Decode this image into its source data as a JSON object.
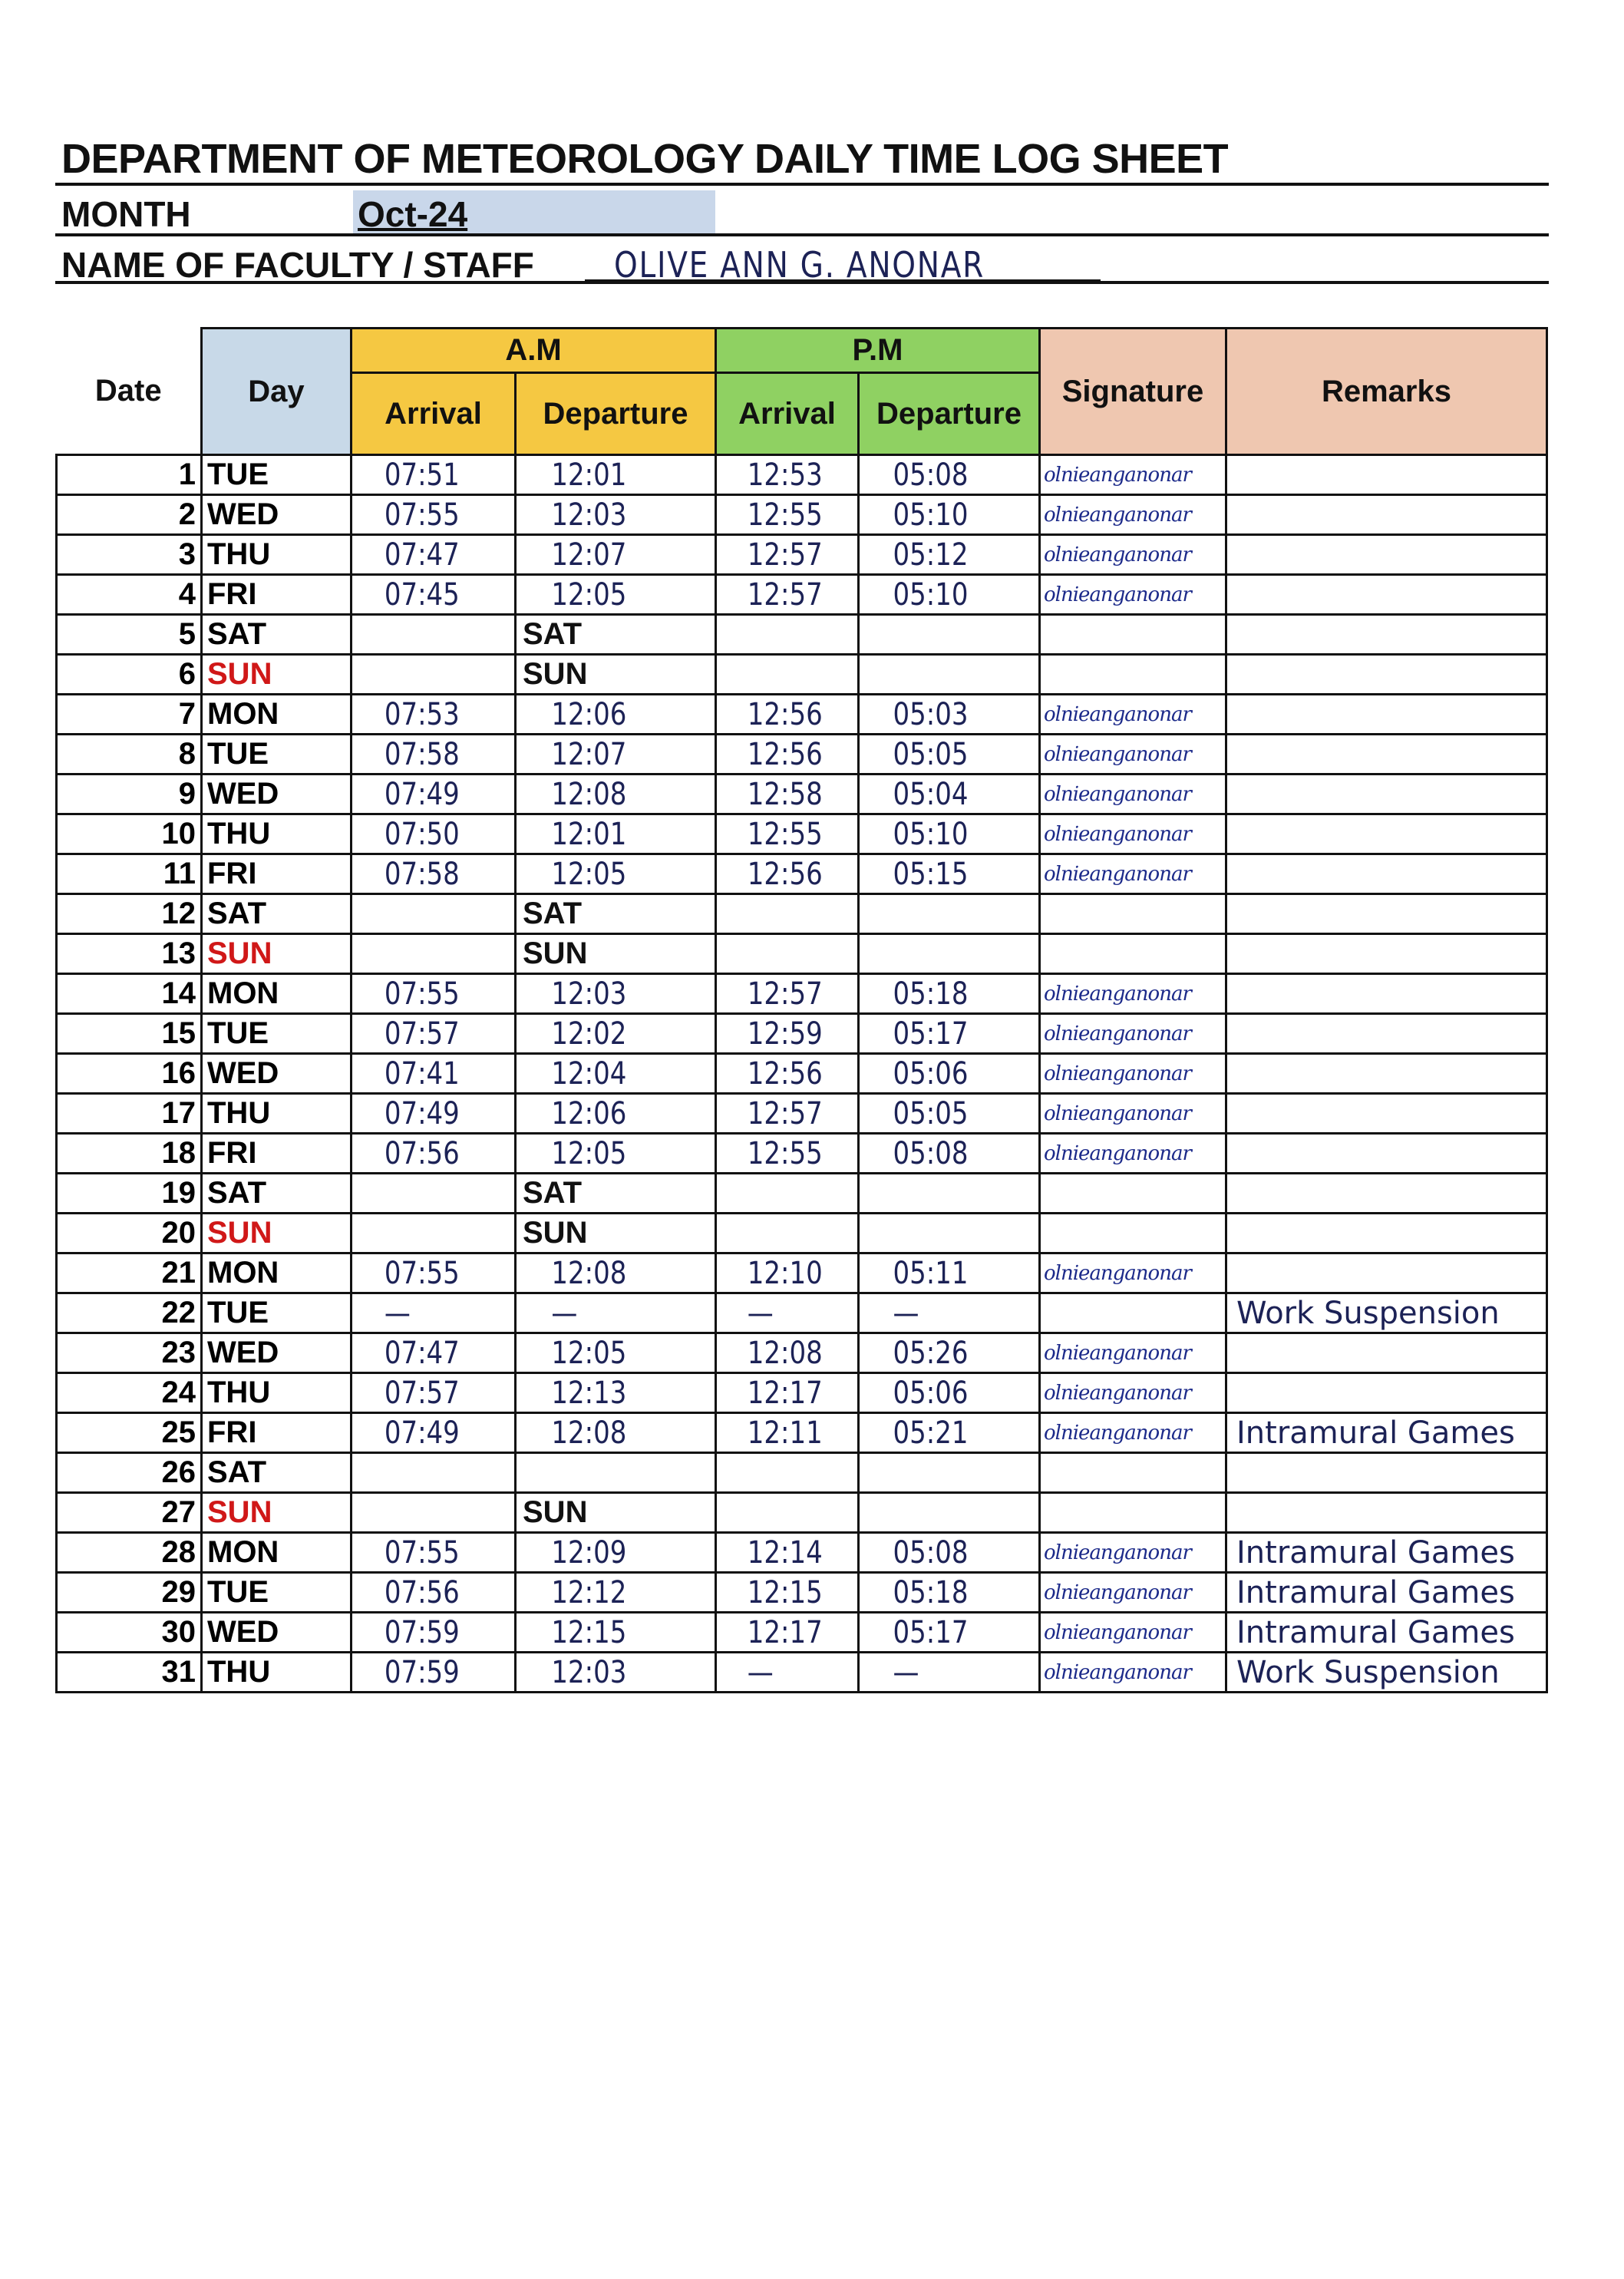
{
  "sheet": {
    "title": "DEPARTMENT OF METEOROLOGY DAILY TIME LOG SHEET",
    "month_label": "MONTH",
    "month_value": "Oct-24",
    "name_label": "NAME OF FACULTY / STAFF",
    "name_value": "OLIVE ANN G. ANONAR"
  },
  "colors": {
    "day_header": "#c8d9e8",
    "am_header": "#f5c842",
    "pm_header": "#8fd162",
    "sig_header": "#efc7b0",
    "sunday": "#d01818",
    "ink": "#1c2256"
  },
  "headers": {
    "date": "Date",
    "day": "Day",
    "am": "A.M",
    "pm": "P.M",
    "am_arrival": "Arrival",
    "am_departure": "Departure",
    "pm_arrival": "Arrival",
    "pm_departure": "Departure",
    "signature": "Signature",
    "remarks": "Remarks"
  },
  "signature_text": "olnieanganonar",
  "rows": [
    {
      "date": "1",
      "day": "TUE",
      "am_arr": "07:51",
      "am_dep": "12:01",
      "pm_arr": "12:53",
      "pm_dep": "05:08",
      "signed": true,
      "remarks": ""
    },
    {
      "date": "2",
      "day": "WED",
      "am_arr": "07:55",
      "am_dep": "12:03",
      "pm_arr": "12:55",
      "pm_dep": "05:10",
      "signed": true,
      "remarks": ""
    },
    {
      "date": "3",
      "day": "THU",
      "am_arr": "07:47",
      "am_dep": "12:07",
      "pm_arr": "12:57",
      "pm_dep": "05:12",
      "signed": true,
      "remarks": ""
    },
    {
      "date": "4",
      "day": "FRI",
      "am_arr": "07:45",
      "am_dep": "12:05",
      "pm_arr": "12:57",
      "pm_dep": "05:10",
      "signed": true,
      "remarks": ""
    },
    {
      "date": "5",
      "day": "SAT",
      "am_arr": "",
      "am_dep": "SAT",
      "pm_arr": "",
      "pm_dep": "",
      "signed": false,
      "remarks": ""
    },
    {
      "date": "6",
      "day": "SUN",
      "am_arr": "",
      "am_dep": "SUN",
      "pm_arr": "",
      "pm_dep": "",
      "signed": false,
      "remarks": ""
    },
    {
      "date": "7",
      "day": "MON",
      "am_arr": "07:53",
      "am_dep": "12:06",
      "pm_arr": "12:56",
      "pm_dep": "05:03",
      "signed": true,
      "remarks": ""
    },
    {
      "date": "8",
      "day": "TUE",
      "am_arr": "07:58",
      "am_dep": "12:07",
      "pm_arr": "12:56",
      "pm_dep": "05:05",
      "signed": true,
      "remarks": ""
    },
    {
      "date": "9",
      "day": "WED",
      "am_arr": "07:49",
      "am_dep": "12:08",
      "pm_arr": "12:58",
      "pm_dep": "05:04",
      "signed": true,
      "remarks": ""
    },
    {
      "date": "10",
      "day": "THU",
      "am_arr": "07:50",
      "am_dep": "12:01",
      "pm_arr": "12:55",
      "pm_dep": "05:10",
      "signed": true,
      "remarks": ""
    },
    {
      "date": "11",
      "day": "FRI",
      "am_arr": "07:58",
      "am_dep": "12:05",
      "pm_arr": "12:56",
      "pm_dep": "05:15",
      "signed": true,
      "remarks": ""
    },
    {
      "date": "12",
      "day": "SAT",
      "am_arr": "",
      "am_dep": "SAT",
      "pm_arr": "",
      "pm_dep": "",
      "signed": false,
      "remarks": ""
    },
    {
      "date": "13",
      "day": "SUN",
      "am_arr": "",
      "am_dep": "SUN",
      "pm_arr": "",
      "pm_dep": "",
      "signed": false,
      "remarks": ""
    },
    {
      "date": "14",
      "day": "MON",
      "am_arr": "07:55",
      "am_dep": "12:03",
      "pm_arr": "12:57",
      "pm_dep": "05:18",
      "signed": true,
      "remarks": ""
    },
    {
      "date": "15",
      "day": "TUE",
      "am_arr": "07:57",
      "am_dep": "12:02",
      "pm_arr": "12:59",
      "pm_dep": "05:17",
      "signed": true,
      "remarks": ""
    },
    {
      "date": "16",
      "day": "WED",
      "am_arr": "07:41",
      "am_dep": "12:04",
      "pm_arr": "12:56",
      "pm_dep": "05:06",
      "signed": true,
      "remarks": ""
    },
    {
      "date": "17",
      "day": "THU",
      "am_arr": "07:49",
      "am_dep": "12:06",
      "pm_arr": "12:57",
      "pm_dep": "05:05",
      "signed": true,
      "remarks": ""
    },
    {
      "date": "18",
      "day": "FRI",
      "am_arr": "07:56",
      "am_dep": "12:05",
      "pm_arr": "12:55",
      "pm_dep": "05:08",
      "signed": true,
      "remarks": ""
    },
    {
      "date": "19",
      "day": "SAT",
      "am_arr": "",
      "am_dep": "SAT",
      "pm_arr": "",
      "pm_dep": "",
      "signed": false,
      "remarks": ""
    },
    {
      "date": "20",
      "day": "SUN",
      "am_arr": "",
      "am_dep": "SUN",
      "pm_arr": "",
      "pm_dep": "",
      "signed": false,
      "remarks": ""
    },
    {
      "date": "21",
      "day": "MON",
      "am_arr": "07:55",
      "am_dep": "12:08",
      "pm_arr": "12:10",
      "pm_dep": "05:11",
      "signed": true,
      "remarks": ""
    },
    {
      "date": "22",
      "day": "TUE",
      "am_arr": "—",
      "am_dep": "—",
      "pm_arr": "—",
      "pm_dep": "—",
      "signed": false,
      "remarks": "Work Suspension"
    },
    {
      "date": "23",
      "day": "WED",
      "am_arr": "07:47",
      "am_dep": "12:05",
      "pm_arr": "12:08",
      "pm_dep": "05:26",
      "signed": true,
      "remarks": ""
    },
    {
      "date": "24",
      "day": "THU",
      "am_arr": "07:57",
      "am_dep": "12:13",
      "pm_arr": "12:17",
      "pm_dep": "05:06",
      "signed": true,
      "remarks": ""
    },
    {
      "date": "25",
      "day": "FRI",
      "am_arr": "07:49",
      "am_dep": "12:08",
      "pm_arr": "12:11",
      "pm_dep": "05:21",
      "signed": true,
      "remarks": "Intramural Games"
    },
    {
      "date": "26",
      "day": "SAT",
      "am_arr": "",
      "am_dep": "",
      "pm_arr": "",
      "pm_dep": "",
      "signed": false,
      "remarks": ""
    },
    {
      "date": "27",
      "day": "SUN",
      "am_arr": "",
      "am_dep": "SUN",
      "pm_arr": "",
      "pm_dep": "",
      "signed": false,
      "remarks": ""
    },
    {
      "date": "28",
      "day": "MON",
      "am_arr": "07:55",
      "am_dep": "12:09",
      "pm_arr": "12:14",
      "pm_dep": "05:08",
      "signed": true,
      "remarks": "Intramural Games"
    },
    {
      "date": "29",
      "day": "TUE",
      "am_arr": "07:56",
      "am_dep": "12:12",
      "pm_arr": "12:15",
      "pm_dep": "05:18",
      "signed": true,
      "remarks": "Intramural Games"
    },
    {
      "date": "30",
      "day": "WED",
      "am_arr": "07:59",
      "am_dep": "12:15",
      "pm_arr": "12:17",
      "pm_dep": "05:17",
      "signed": true,
      "remarks": "Intramural Games"
    },
    {
      "date": "31",
      "day": "THU",
      "am_arr": "07:59",
      "am_dep": "12:03",
      "pm_arr": "—",
      "pm_dep": "—",
      "signed": true,
      "remarks": "Work Suspension"
    }
  ]
}
